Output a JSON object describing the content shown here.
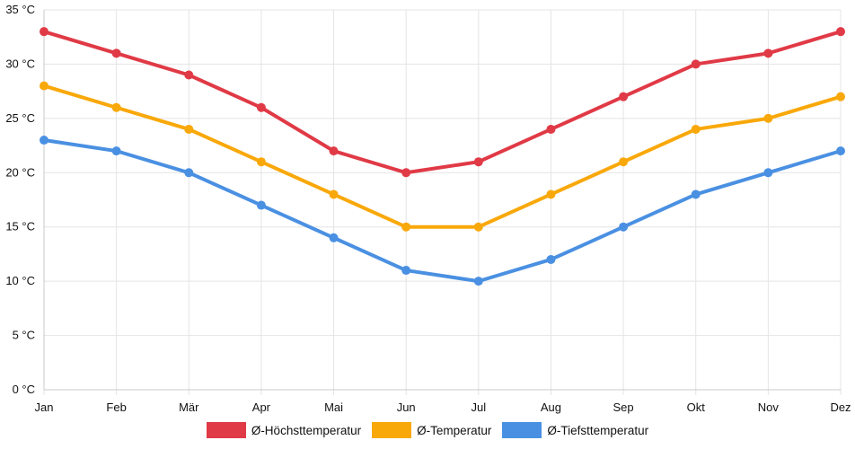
{
  "chart_data": {
    "type": "line",
    "title": "",
    "xlabel": "",
    "ylabel": "",
    "categories": [
      "Jan",
      "Feb",
      "Mär",
      "Apr",
      "Mai",
      "Jun",
      "Jul",
      "Aug",
      "Sep",
      "Okt",
      "Nov",
      "Dez"
    ],
    "ylim": [
      0,
      35
    ],
    "yticks": [
      {
        "value": 0,
        "label": "0 °C"
      },
      {
        "value": 5,
        "label": "5 °C"
      },
      {
        "value": 10,
        "label": "10 °C"
      },
      {
        "value": 15,
        "label": "15 °C"
      },
      {
        "value": 20,
        "label": "20 °C"
      },
      {
        "value": 25,
        "label": "25 °C"
      },
      {
        "value": 30,
        "label": "30 °C"
      },
      {
        "value": 35,
        "label": "35 °C"
      }
    ],
    "grid": true,
    "legend_position": "bottom",
    "series": [
      {
        "name": "Ø-Höchsttemperatur",
        "color": "#e03a46",
        "values": [
          33,
          31,
          29,
          26,
          22,
          20,
          21,
          24,
          27,
          30,
          31,
          33
        ]
      },
      {
        "name": "Ø-Temperatur",
        "color": "#f9a80a",
        "values": [
          28,
          26,
          24,
          21,
          18,
          15,
          15,
          18,
          21,
          24,
          25,
          27
        ]
      },
      {
        "name": "Ø-Tiefsttemperatur",
        "color": "#4a90e2",
        "values": [
          23,
          22,
          20,
          17,
          14,
          11,
          10,
          12,
          15,
          18,
          20,
          22
        ]
      }
    ]
  }
}
